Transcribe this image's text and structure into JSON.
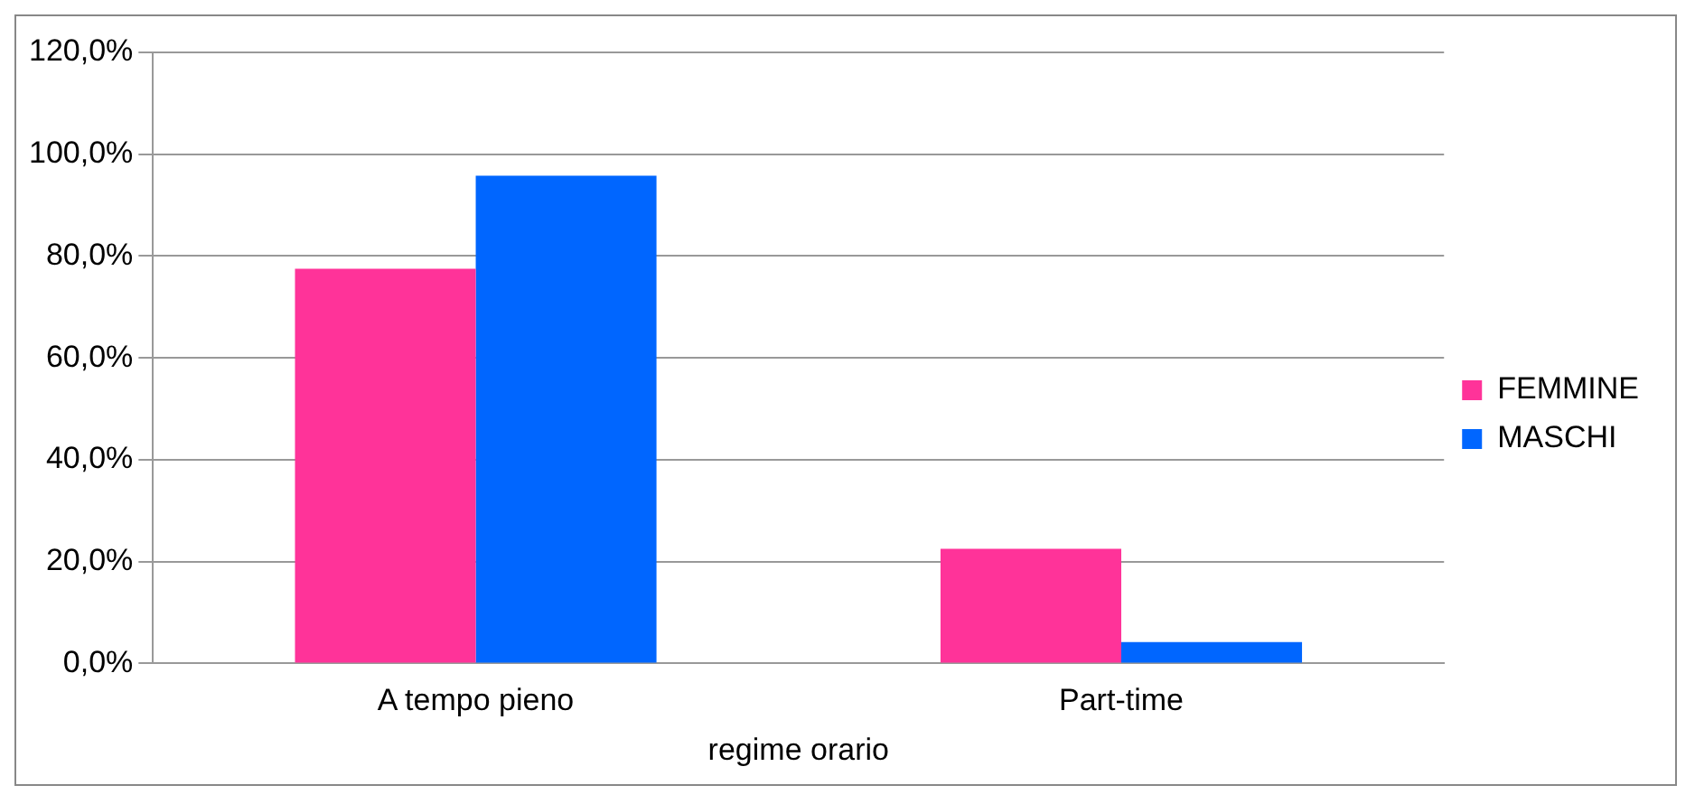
{
  "chart_data": {
    "type": "bar",
    "xlabel": "regime orario",
    "categories": [
      "A tempo pieno",
      "Part-time"
    ],
    "series": [
      {
        "name": "FEMMINE",
        "color": "#ff3399",
        "values": [
          77.5,
          22.5
        ]
      },
      {
        "name": "MASCHI",
        "color": "#0066ff",
        "values": [
          95.8,
          4.2
        ]
      }
    ],
    "ylim": [
      0,
      120
    ],
    "yticks": [
      {
        "value": 0,
        "label": "0,0%"
      },
      {
        "value": 20,
        "label": "20,0%"
      },
      {
        "value": 40,
        "label": "40,0%"
      },
      {
        "value": 60,
        "label": "60,0%"
      },
      {
        "value": 80,
        "label": "80,0%"
      },
      {
        "value": 100,
        "label": "100,0%"
      },
      {
        "value": 120,
        "label": "120,0%"
      }
    ],
    "grid": "y",
    "legend": "right"
  }
}
